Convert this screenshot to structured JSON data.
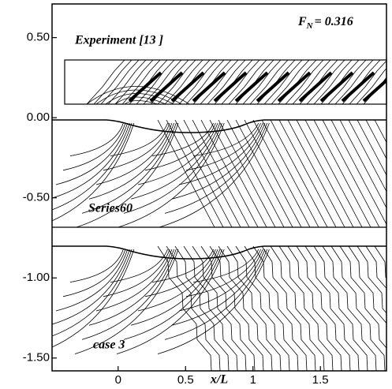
{
  "chart_data": {
    "type": "contour",
    "xlabel": "x/L",
    "annotations": [
      "Experiment [13 ]",
      "Series60",
      "case 3"
    ],
    "froude": {
      "symbol": "F",
      "subscript": "N",
      "text": "= 0.316"
    },
    "xlim": [
      -0.49,
      1.99
    ],
    "xticks": [
      0,
      0.5,
      1,
      1.5
    ],
    "ylim": [
      -1.58,
      0.71
    ],
    "yticks": [
      {
        "value": 0.5,
        "label": "0.50"
      },
      {
        "value": 0,
        "label": "0.00"
      },
      {
        "value": -0.5,
        "label": "-0.50"
      },
      {
        "value": -1,
        "label": "-1.00"
      },
      {
        "value": -1.5,
        "label": "-1.50"
      }
    ]
  }
}
